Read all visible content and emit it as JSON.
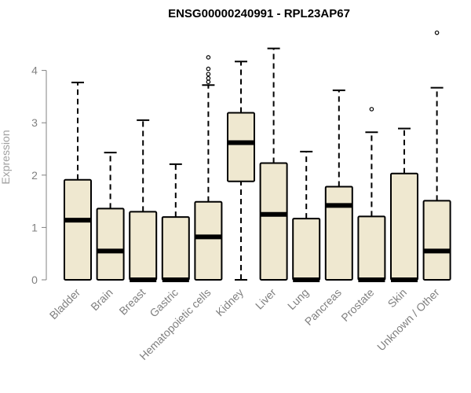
{
  "chart_data": {
    "type": "boxplot",
    "title": "ENSG00000240991 - RPL23AP67",
    "xlabel": "",
    "ylabel": "Expression",
    "ylim": [
      0,
      4.6
    ],
    "yticks": [
      0,
      1,
      2,
      3,
      4
    ],
    "box_fill": "#efe8d0",
    "box_stroke": "#000000",
    "ylabel_color": "#a0a0a0",
    "tick_color": "#808080",
    "categories": [
      "Bladder",
      "Brain",
      "Breast",
      "Gastric",
      "Hematopoietic cells",
      "Kidney",
      "Liver",
      "Lung",
      "Pancreas",
      "Prostate",
      "Skin",
      "Unknown / Other"
    ],
    "boxes": [
      {
        "min": 0,
        "q1": 0,
        "median": 1.14,
        "q3": 1.91,
        "max": 3.77,
        "outliers": []
      },
      {
        "min": 0,
        "q1": 0,
        "median": 0.55,
        "q3": 1.36,
        "max": 2.43,
        "outliers": []
      },
      {
        "min": 0,
        "q1": 0,
        "median": 0.0,
        "q3": 1.3,
        "max": 3.05,
        "outliers": []
      },
      {
        "min": 0,
        "q1": 0,
        "median": 0.0,
        "q3": 1.2,
        "max": 2.21,
        "outliers": []
      },
      {
        "min": 0,
        "q1": 0,
        "median": 0.82,
        "q3": 1.49,
        "max": 3.72,
        "outliers": [
          3.78,
          3.85,
          3.93,
          4.03,
          4.25
        ]
      },
      {
        "min": 0,
        "q1": 1.88,
        "median": 2.62,
        "q3": 3.19,
        "max": 4.17,
        "outliers": []
      },
      {
        "min": 0,
        "q1": 0,
        "median": 1.25,
        "q3": 2.23,
        "max": 4.42,
        "outliers": []
      },
      {
        "min": 0,
        "q1": 0,
        "median": 0.0,
        "q3": 1.17,
        "max": 2.45,
        "outliers": []
      },
      {
        "min": 0,
        "q1": 0,
        "median": 1.42,
        "q3": 1.78,
        "max": 3.62,
        "outliers": []
      },
      {
        "min": 0,
        "q1": 0,
        "median": 0.0,
        "q3": 1.21,
        "max": 2.82,
        "outliers": [
          3.26
        ]
      },
      {
        "min": 0,
        "q1": 0,
        "median": 0.0,
        "q3": 2.03,
        "max": 2.89,
        "outliers": []
      },
      {
        "min": 0,
        "q1": 0,
        "median": 0.55,
        "q3": 1.51,
        "max": 3.67,
        "outliers": [
          4.72
        ]
      }
    ]
  }
}
